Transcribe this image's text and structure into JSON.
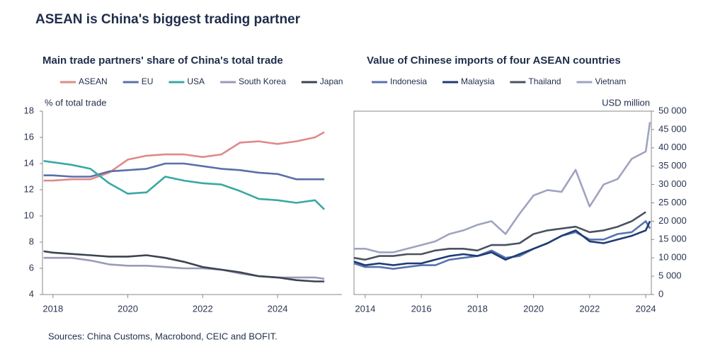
{
  "title": "ASEAN is China's biggest trading partner",
  "source": "Sources: China Customs, Macrobond, CEIC and BOFIT.",
  "chart_data": [
    {
      "type": "line",
      "title": "Main trade partners' share of China's total trade",
      "y_label": "% of total trade",
      "x": [
        2017.75,
        2018,
        2018.5,
        2019,
        2019.5,
        2020,
        2020.5,
        2021,
        2021.5,
        2022,
        2022.5,
        2023,
        2023.5,
        2024,
        2024.5,
        2025,
        2025.25
      ],
      "xlim": [
        2017.72,
        2025.72
      ],
      "xticks": [
        2018,
        2020,
        2022,
        2024
      ],
      "ylim": [
        4,
        18
      ],
      "yticks": [
        4,
        6,
        8,
        10,
        12,
        14,
        16,
        18
      ],
      "yaxis_side": "left",
      "series": [
        {
          "name": "ASEAN",
          "color": "#e08a8a",
          "values": [
            12.7,
            12.7,
            12.8,
            12.8,
            13.3,
            14.3,
            14.6,
            14.7,
            14.7,
            14.5,
            14.7,
            15.6,
            15.7,
            15.5,
            15.7,
            16.0,
            16.4
          ]
        },
        {
          "name": "EU",
          "color": "#5b6fa8",
          "values": [
            13.1,
            13.1,
            13.0,
            13.0,
            13.4,
            13.5,
            13.6,
            14.0,
            14.0,
            13.8,
            13.6,
            13.5,
            13.3,
            13.2,
            12.8,
            12.8,
            12.8
          ]
        },
        {
          "name": "USA",
          "color": "#3aa8a4",
          "values": [
            14.2,
            14.1,
            13.9,
            13.6,
            12.5,
            11.7,
            11.8,
            13.0,
            12.7,
            12.5,
            12.4,
            11.9,
            11.3,
            11.2,
            11.0,
            11.2,
            10.5
          ]
        },
        {
          "name": "South Korea",
          "color": "#9a9ab8",
          "values": [
            6.8,
            6.8,
            6.8,
            6.6,
            6.3,
            6.2,
            6.2,
            6.1,
            6.0,
            6.0,
            5.9,
            5.6,
            5.4,
            5.3,
            5.3,
            5.3,
            5.2
          ]
        },
        {
          "name": "Japan",
          "color": "#3c4350",
          "values": [
            7.3,
            7.2,
            7.1,
            7.0,
            6.9,
            6.9,
            7.0,
            6.8,
            6.5,
            6.1,
            5.9,
            5.7,
            5.4,
            5.3,
            5.1,
            5.0,
            5.0
          ]
        }
      ]
    },
    {
      "type": "line",
      "title": "Value of Chinese imports of four ASEAN countries",
      "y_label": "USD million",
      "x": [
        2013.6,
        2014,
        2014.5,
        2015,
        2015.5,
        2016,
        2016.5,
        2017,
        2017.5,
        2018,
        2018.5,
        2019,
        2019.5,
        2020,
        2020.5,
        2021,
        2021.5,
        2022,
        2022.5,
        2023,
        2023.5,
        2024,
        2024.15
      ],
      "xlim": [
        2013.6,
        2024.2
      ],
      "xticks": [
        2014,
        2016,
        2018,
        2020,
        2022,
        2024
      ],
      "ylim": [
        0,
        50000
      ],
      "yticks": [
        0,
        {
          "value": 5000,
          "label": "5 000"
        },
        {
          "value": 10000,
          "label": "10 000"
        },
        {
          "value": 15000,
          "label": "15 000"
        },
        {
          "value": 20000,
          "label": "20 000"
        },
        {
          "value": 25000,
          "label": "25 000"
        },
        {
          "value": 30000,
          "label": "30 000"
        },
        {
          "value": 35000,
          "label": "35 000"
        },
        {
          "value": 40000,
          "label": "40 000"
        },
        {
          "value": 45000,
          "label": "45 000"
        },
        {
          "value": 50000,
          "label": "50 000"
        }
      ],
      "yaxis_side": "right",
      "series": [
        {
          "name": "Indonesia",
          "color": "#5773b0",
          "values": [
            8500,
            7500,
            7500,
            7000,
            7500,
            8000,
            8000,
            9500,
            10000,
            10500,
            12000,
            10000,
            10500,
            12500,
            14000,
            16000,
            17000,
            15000,
            15000,
            16500,
            17000,
            20000,
            18000
          ]
        },
        {
          "name": "Malaysia",
          "color": "#1f3b73",
          "values": [
            9000,
            8000,
            8500,
            8000,
            8500,
            8500,
            9500,
            10500,
            11000,
            10500,
            11500,
            9500,
            11000,
            12500,
            14000,
            16000,
            17500,
            14500,
            14000,
            15000,
            16000,
            17500,
            20000
          ]
        },
        {
          "name": "Thailand",
          "color": "#4a5260",
          "values": [
            10000,
            9500,
            10500,
            10500,
            11000,
            11000,
            12000,
            12500,
            12500,
            12000,
            13500,
            13500,
            14000,
            16500,
            17500,
            18000,
            18500,
            17000,
            17500,
            18500,
            20000,
            22500,
            null
          ]
        },
        {
          "name": "Vietnam",
          "color": "#9fa3c0",
          "values": [
            12500,
            12500,
            11500,
            11500,
            12500,
            13500,
            14500,
            16500,
            17500,
            19000,
            20000,
            16500,
            22000,
            27000,
            28500,
            28000,
            34000,
            24000,
            30000,
            31500,
            37000,
            39000,
            47000
          ]
        }
      ]
    }
  ]
}
